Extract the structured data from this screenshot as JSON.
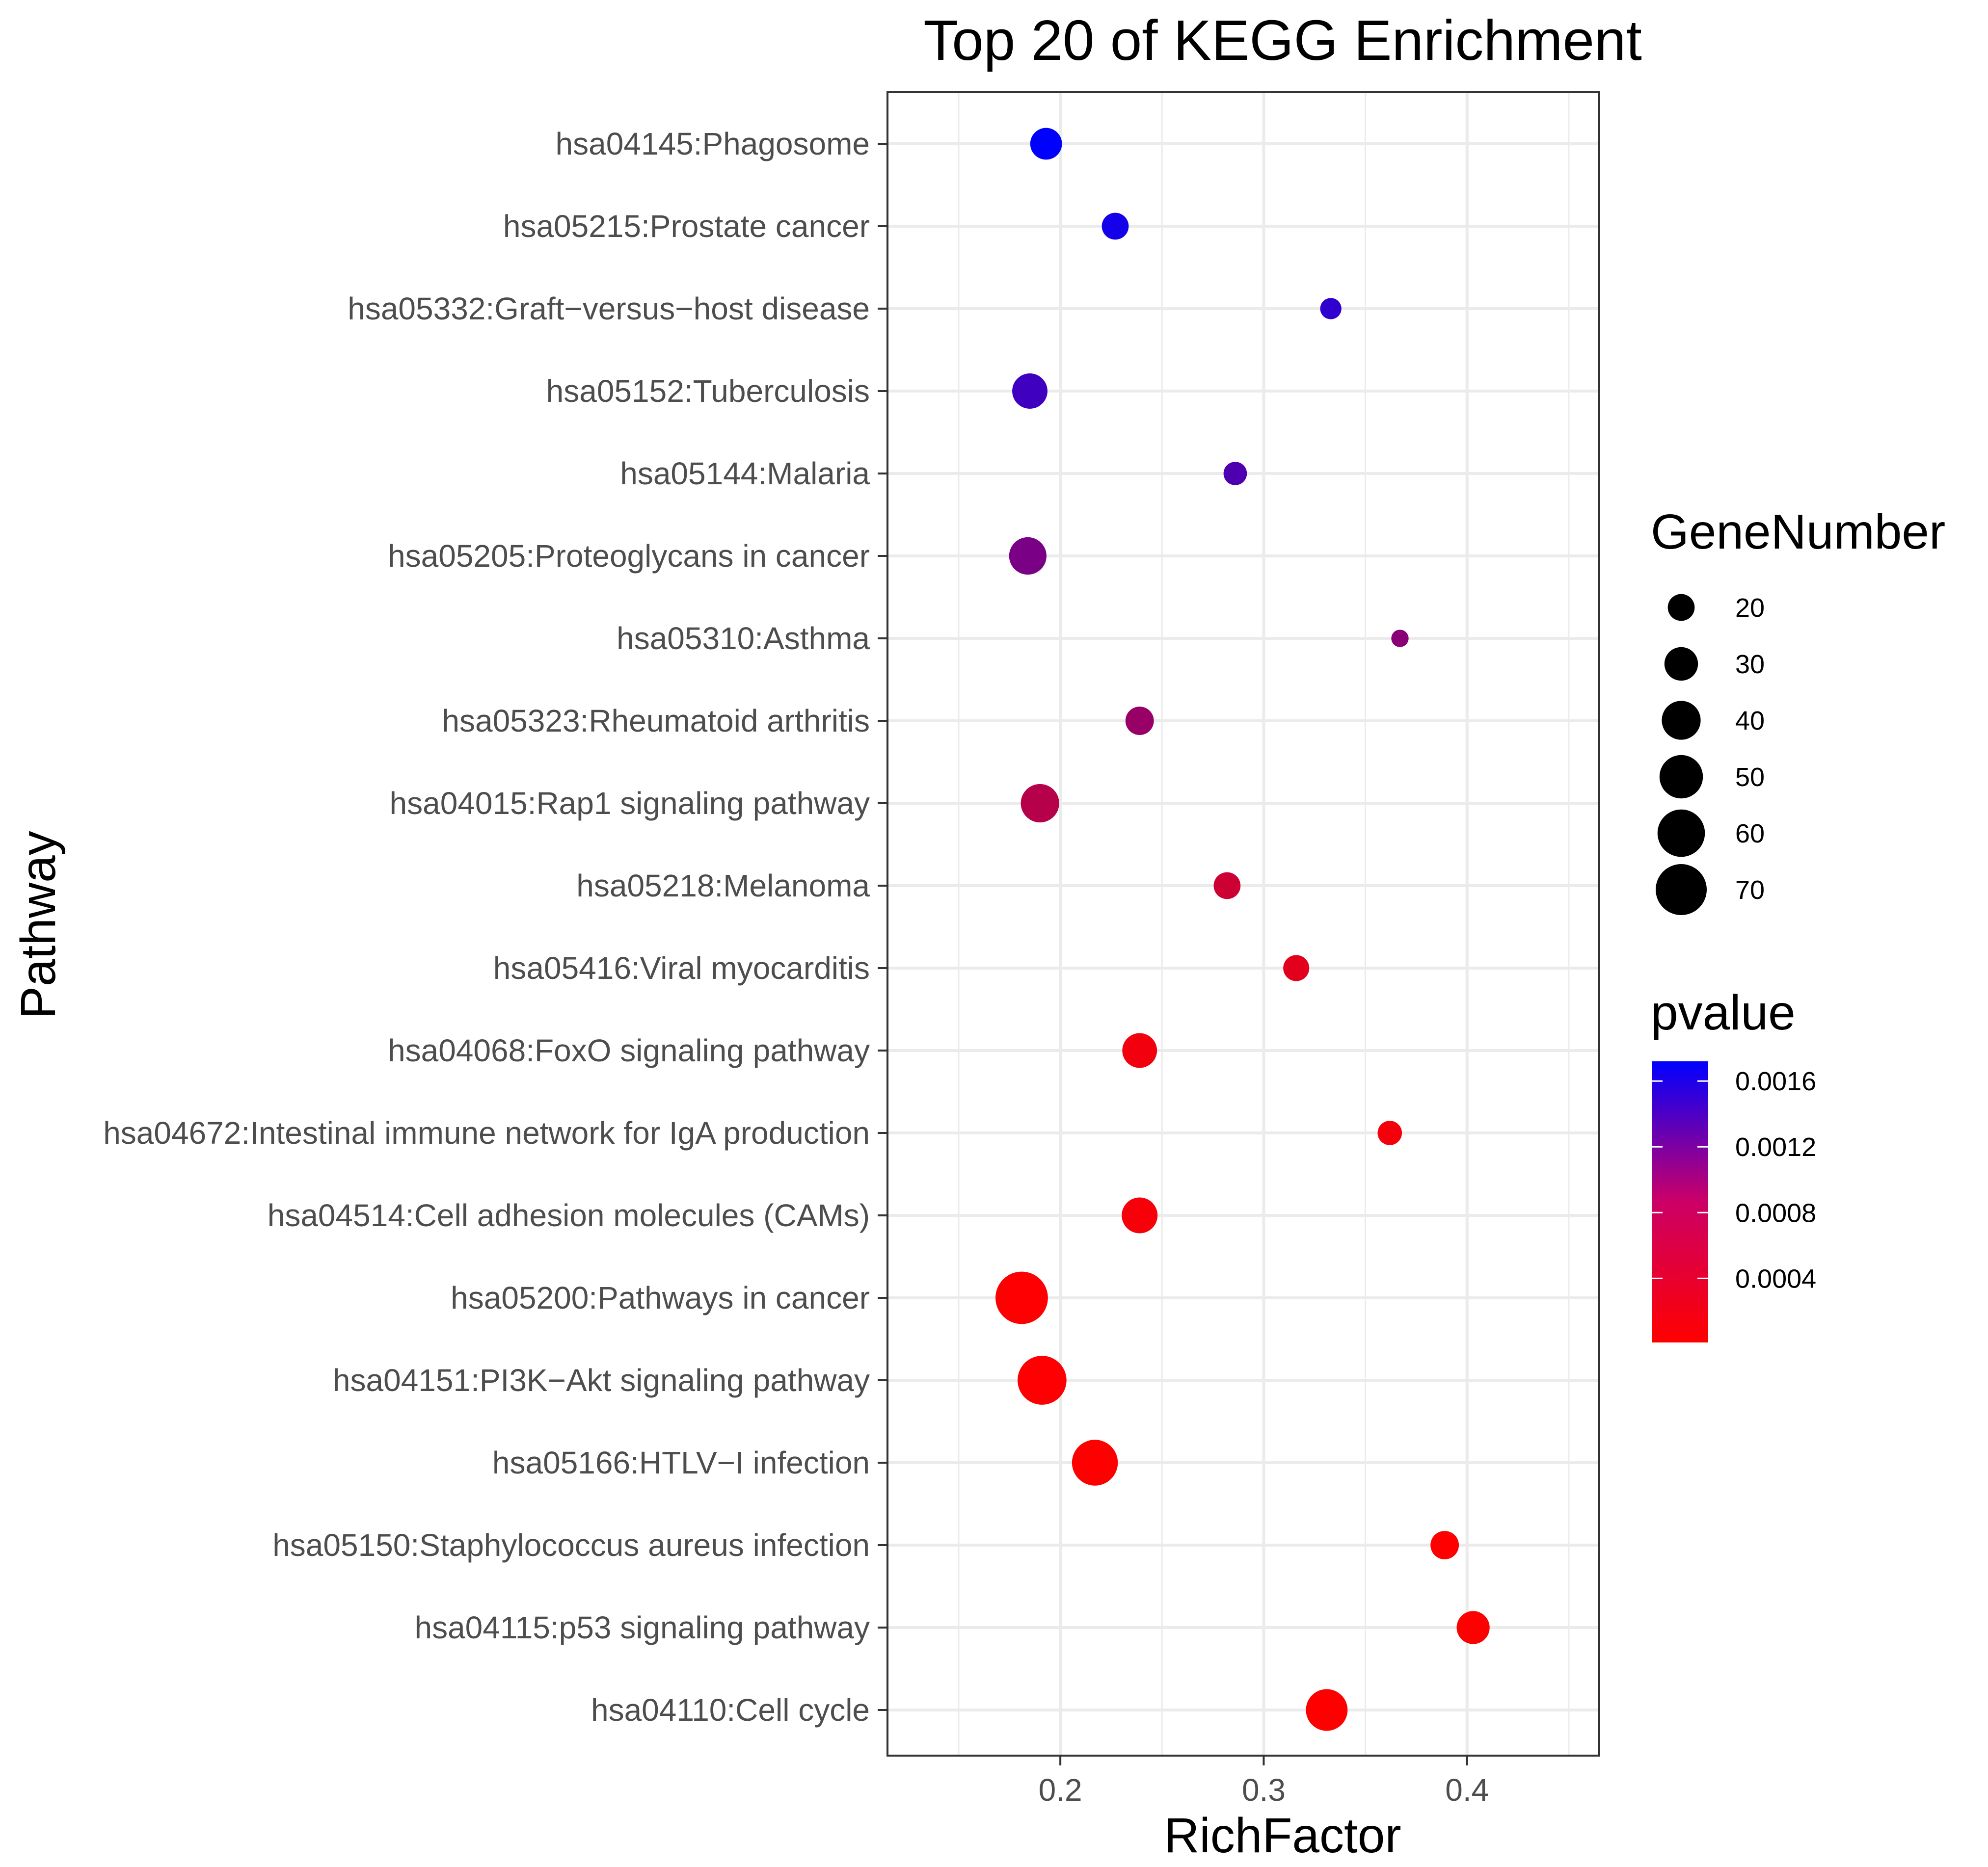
{
  "chart_data": {
    "type": "scatter",
    "title": "Top 20 of KEGG Enrichment",
    "xlabel": "RichFactor",
    "ylabel": "Pathway",
    "xlim": [
      0.115,
      0.465
    ],
    "xticks": [
      "0.2",
      "0.3",
      "0.4"
    ],
    "xtick_values": [
      0.2,
      0.3,
      0.4
    ],
    "grid": true,
    "legend_placement": "right",
    "size_legend": {
      "title": "GeneNumber",
      "values": [
        20,
        30,
        40,
        50,
        60,
        70
      ],
      "labels": [
        "20",
        "30",
        "40",
        "50",
        "60",
        "70"
      ]
    },
    "color_legend": {
      "title": "pvalue",
      "min": 1e-05,
      "max": 0.00172,
      "ticks": [
        0.0004,
        0.0008,
        0.0012,
        0.0016
      ],
      "tick_labels": [
        "0.0004",
        "0.0008",
        "0.0012",
        "0.0016"
      ],
      "low_color": "#ff0000",
      "high_color": "#0000ff"
    },
    "points": [
      {
        "pathway": "hsa04145:Phagosome",
        "richfactor": 0.193,
        "genes": 27,
        "pvalue": 0.00172
      },
      {
        "pathway": "hsa05215:Prostate cancer",
        "richfactor": 0.227,
        "genes": 20,
        "pvalue": 0.00158
      },
      {
        "pathway": "hsa05332:Graft−versus−host disease",
        "richfactor": 0.333,
        "genes": 14,
        "pvalue": 0.0014
      },
      {
        "pathway": "hsa05152:Tuberculosis",
        "richfactor": 0.185,
        "genes": 33,
        "pvalue": 0.0013
      },
      {
        "pathway": "hsa05144:Malaria",
        "richfactor": 0.286,
        "genes": 16,
        "pvalue": 0.0012
      },
      {
        "pathway": "hsa05205:Proteoglycans in cancer",
        "richfactor": 0.184,
        "genes": 37,
        "pvalue": 0.0009
      },
      {
        "pathway": "hsa05310:Asthma",
        "richfactor": 0.367,
        "genes": 11,
        "pvalue": 0.0008
      },
      {
        "pathway": "hsa05323:Rheumatoid arthritis",
        "richfactor": 0.239,
        "genes": 22,
        "pvalue": 0.0007
      },
      {
        "pathway": "hsa04015:Rap1 signaling pathway",
        "richfactor": 0.19,
        "genes": 39,
        "pvalue": 0.0005
      },
      {
        "pathway": "hsa05218:Melanoma",
        "richfactor": 0.282,
        "genes": 20,
        "pvalue": 0.00035
      },
      {
        "pathway": "hsa05416:Viral myocarditis",
        "richfactor": 0.316,
        "genes": 19,
        "pvalue": 0.0002
      },
      {
        "pathway": "hsa04068:FoxO signaling pathway",
        "richfactor": 0.239,
        "genes": 32,
        "pvalue": 0.0001
      },
      {
        "pathway": "hsa04672:Intestinal immune network for IgA production",
        "richfactor": 0.362,
        "genes": 17,
        "pvalue": 8e-05
      },
      {
        "pathway": "hsa04514:Cell adhesion molecules (CAMs)",
        "richfactor": 0.239,
        "genes": 34,
        "pvalue": 7e-05
      },
      {
        "pathway": "hsa05200:Pathways in cancer",
        "richfactor": 0.181,
        "genes": 74,
        "pvalue": 2e-05
      },
      {
        "pathway": "hsa04151:PI3K−Akt signaling pathway",
        "richfactor": 0.191,
        "genes": 64,
        "pvalue": 2e-05
      },
      {
        "pathway": "hsa05166:HTLV−I infection",
        "richfactor": 0.217,
        "genes": 56,
        "pvalue": 1e-05
      },
      {
        "pathway": "hsa05150:Staphylococcus aureus infection",
        "richfactor": 0.389,
        "genes": 22,
        "pvalue": 1e-05
      },
      {
        "pathway": "hsa04115:p53 signaling pathway",
        "richfactor": 0.403,
        "genes": 29,
        "pvalue": 1e-05
      },
      {
        "pathway": "hsa04110:Cell cycle",
        "richfactor": 0.331,
        "genes": 46,
        "pvalue": 1e-05
      }
    ]
  }
}
